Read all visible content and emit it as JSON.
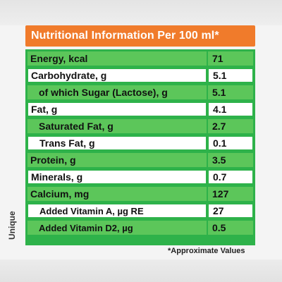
{
  "header": {
    "title": "Nutritional Information Per 100 ml*"
  },
  "rows": [
    {
      "name": "Energy, kcal",
      "value": "71"
    },
    {
      "name": "Carbohydrate, g",
      "value": "5.1"
    },
    {
      "name": "of which Sugar (Lactose), g",
      "value": "5.1"
    },
    {
      "name": "Fat, g",
      "value": "4.1"
    },
    {
      "name": "Saturated Fat, g",
      "value": "2.7"
    },
    {
      "name": "Trans Fat, g",
      "value": "0.1"
    },
    {
      "name": "Protein, g",
      "value": "3.5"
    },
    {
      "name": "Minerals, g",
      "value": "0.7"
    },
    {
      "name": "Calcium, mg",
      "value": "127"
    },
    {
      "name": "Added Vitamin A, µg RE",
      "value": "27"
    },
    {
      "name": "Added Vitamin D2, µg",
      "value": "0.5"
    }
  ],
  "footnote": "*Approximate Values",
  "side_text": "Unique",
  "colors": {
    "header": "#f07b2b",
    "green": "#2eb24a",
    "light_green": "#5cc65a",
    "white": "#ffffff"
  }
}
